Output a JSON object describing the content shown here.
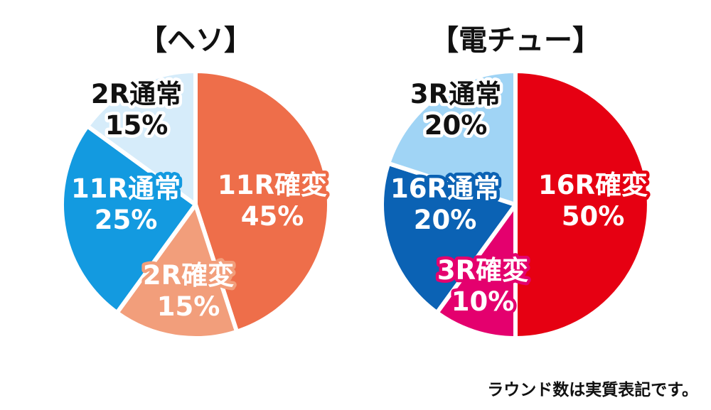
{
  "chart_data": [
    {
      "type": "pie",
      "title": "【ヘソ】",
      "slices": [
        {
          "label": "11R確変",
          "value": 45,
          "value_text": "45%",
          "color": "#ee6e4a",
          "text_color": "#ffffff",
          "outline_color": "#ee6e4a"
        },
        {
          "label": "2R確変",
          "value": 15,
          "value_text": "15%",
          "color": "#f29e7b",
          "text_color": "#ffffff",
          "outline_color": "#f29e7b"
        },
        {
          "label": "11R通常",
          "value": 25,
          "value_text": "25%",
          "color": "#139ae0",
          "text_color": "#ffffff",
          "outline_color": "#139ae0"
        },
        {
          "label": "2R通常",
          "value": 15,
          "value_text": "15%",
          "color": "#d6ecfa",
          "text_color": "#111111",
          "outline_color": "#ffffff"
        }
      ]
    },
    {
      "type": "pie",
      "title": "【電チュー】",
      "slices": [
        {
          "label": "16R確変",
          "value": 50,
          "value_text": "50%",
          "color": "#e60012",
          "text_color": "#ffffff",
          "outline_color": "#e60012"
        },
        {
          "label": "3R確変",
          "value": 10,
          "value_text": "10%",
          "color": "#e4006e",
          "text_color": "#ffffff",
          "outline_color": "#e4006e"
        },
        {
          "label": "16R通常",
          "value": 20,
          "value_text": "20%",
          "color": "#0b62b4",
          "text_color": "#ffffff",
          "outline_color": "#0b62b4"
        },
        {
          "label": "3R通常",
          "value": 20,
          "value_text": "20%",
          "color": "#a0d4f5",
          "text_color": "#111111",
          "outline_color": "#ffffff"
        }
      ]
    }
  ],
  "footnote": "ラウンド数は実質表記です。"
}
